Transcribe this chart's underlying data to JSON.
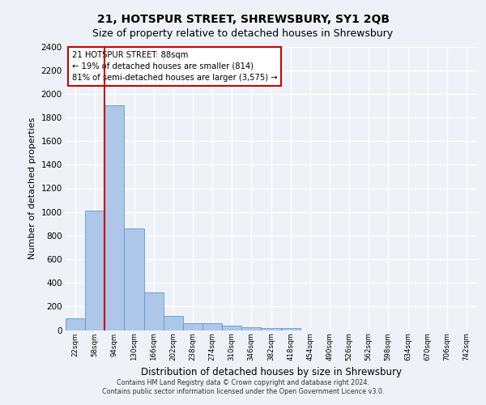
{
  "title": "21, HOTSPUR STREET, SHREWSBURY, SY1 2QB",
  "subtitle": "Size of property relative to detached houses in Shrewsbury",
  "xlabel": "Distribution of detached houses by size in Shrewsbury",
  "ylabel": "Number of detached properties",
  "categories": [
    "22sqm",
    "58sqm",
    "94sqm",
    "130sqm",
    "166sqm",
    "202sqm",
    "238sqm",
    "274sqm",
    "310sqm",
    "346sqm",
    "382sqm",
    "418sqm",
    "454sqm",
    "490sqm",
    "526sqm",
    "562sqm",
    "598sqm",
    "634sqm",
    "670sqm",
    "706sqm",
    "742sqm"
  ],
  "values": [
    100,
    1010,
    1900,
    860,
    320,
    120,
    60,
    55,
    40,
    25,
    20,
    20,
    0,
    0,
    0,
    0,
    0,
    0,
    0,
    0,
    0
  ],
  "bar_color": "#aec6e8",
  "bar_edge_color": "#5b9bd5",
  "red_line_index": 2,
  "annotation_line1": "21 HOTSPUR STREET: 88sqm",
  "annotation_line2": "← 19% of detached houses are smaller (814)",
  "annotation_line3": "81% of semi-detached houses are larger (3,575) →",
  "annotation_box_color": "#ffffff",
  "annotation_border_color": "#cc0000",
  "ylim": [
    0,
    2400
  ],
  "yticks": [
    0,
    200,
    400,
    600,
    800,
    1000,
    1200,
    1400,
    1600,
    1800,
    2000,
    2200,
    2400
  ],
  "footer_line1": "Contains HM Land Registry data © Crown copyright and database right 2024.",
  "footer_line2": "Contains public sector information licensed under the Open Government Licence v3.0.",
  "background_color": "#eef2f8",
  "plot_background": "#eef2f8",
  "grid_color": "#ffffff",
  "title_fontsize": 10,
  "subtitle_fontsize": 9,
  "red_line_color": "#cc0000"
}
